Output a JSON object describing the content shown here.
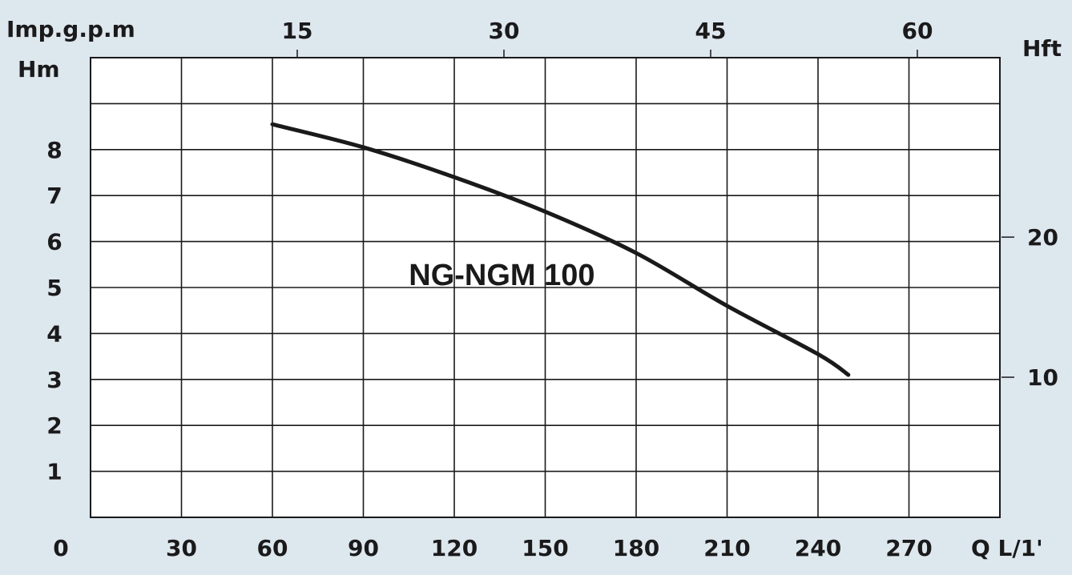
{
  "chart_data": {
    "type": "line",
    "units": {
      "top_left": "Imp.g.p.m",
      "left": "Hm",
      "right": "Hft",
      "bottom": "Q L/1'"
    },
    "x_bottom": {
      "ticks": [
        0,
        30,
        60,
        90,
        120,
        150,
        180,
        210,
        240,
        270
      ],
      "range": [
        0,
        300
      ]
    },
    "x_top": {
      "ticks": [
        15,
        30,
        45,
        60
      ]
    },
    "y_left": {
      "ticks": [
        1,
        2,
        3,
        4,
        5,
        6,
        7,
        8
      ],
      "range": [
        0,
        10
      ]
    },
    "y_right": {
      "ticks": [
        10,
        20
      ]
    },
    "grid": true,
    "series": [
      {
        "name": "NG-NGM 100",
        "x": [
          60,
          90,
          120,
          150,
          180,
          210,
          240,
          250
        ],
        "y": [
          8.55,
          8.05,
          7.4,
          6.65,
          5.75,
          4.6,
          3.55,
          3.1
        ]
      }
    ]
  }
}
